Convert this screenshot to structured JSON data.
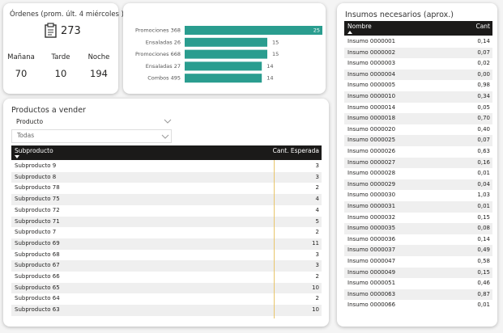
{
  "orders_card": {
    "title": "Órdenes (prom. últ. 4 miércoles )",
    "total": 273,
    "shifts": [
      {
        "label": "Mañana",
        "value": 70
      },
      {
        "label": "Tarde",
        "value": 10
      },
      {
        "label": "Noche",
        "value": 194
      }
    ]
  },
  "chart_data": {
    "type": "bar",
    "orientation": "horizontal",
    "categories": [
      "Promociones 368",
      "Ensaladas 26",
      "Promociones 668",
      "Ensaladas 27",
      "Combos 495"
    ],
    "values": [
      25,
      15,
      15,
      14,
      14
    ],
    "color": "#2a9d8f"
  },
  "products": {
    "title": "Productos a vender",
    "filter": {
      "label": "Producto",
      "value": "Todas"
    },
    "columns": [
      "Subproducto",
      "Cant. Esperada"
    ],
    "rows": [
      [
        "Subproducto 9",
        3
      ],
      [
        "Subproducto 8",
        3
      ],
      [
        "Subproducto 78",
        2
      ],
      [
        "Subproducto 75",
        4
      ],
      [
        "Subproducto 72",
        4
      ],
      [
        "Subproducto 71",
        5
      ],
      [
        "Subproducto 7",
        2
      ],
      [
        "Subproducto 69",
        11
      ],
      [
        "Subproducto 68",
        3
      ],
      [
        "Subproducto 67",
        3
      ],
      [
        "Subproducto 66",
        2
      ],
      [
        "Subproducto 65",
        10
      ],
      [
        "Subproducto 64",
        2
      ],
      [
        "Subproducto 63",
        10
      ]
    ]
  },
  "supplies": {
    "title": "Insumos necesarios (aprox.)",
    "columns": [
      "Nombre",
      "Cant"
    ],
    "rows": [
      [
        "Insumo 0000001",
        "0,14"
      ],
      [
        "Insumo 0000002",
        "0,07"
      ],
      [
        "Insumo 0000003",
        "0,02"
      ],
      [
        "Insumo 0000004",
        "0,00"
      ],
      [
        "Insumo 0000005",
        "0,98"
      ],
      [
        "Insumo 0000010",
        "0,34"
      ],
      [
        "Insumo 0000014",
        "0,05"
      ],
      [
        "Insumo 0000018",
        "0,70"
      ],
      [
        "Insumo 0000020",
        "0,40"
      ],
      [
        "Insumo 0000025",
        "0,07"
      ],
      [
        "Insumo 0000026",
        "0,63"
      ],
      [
        "Insumo 0000027",
        "0,16"
      ],
      [
        "Insumo 0000028",
        "0,01"
      ],
      [
        "Insumo 0000029",
        "0,04"
      ],
      [
        "Insumo 0000030",
        "1,03"
      ],
      [
        "Insumo 0000031",
        "0,01"
      ],
      [
        "Insumo 0000032",
        "0,15"
      ],
      [
        "Insumo 0000035",
        "0,08"
      ],
      [
        "Insumo 0000036",
        "0,14"
      ],
      [
        "Insumo 0000037",
        "0,49"
      ],
      [
        "Insumo 0000047",
        "0,58"
      ],
      [
        "Insumo 0000049",
        "0,15"
      ],
      [
        "Insumo 0000051",
        "0,46"
      ],
      [
        "Insumo 0000063",
        "0,87"
      ],
      [
        "Insumo 0000066",
        "0,01"
      ]
    ]
  }
}
